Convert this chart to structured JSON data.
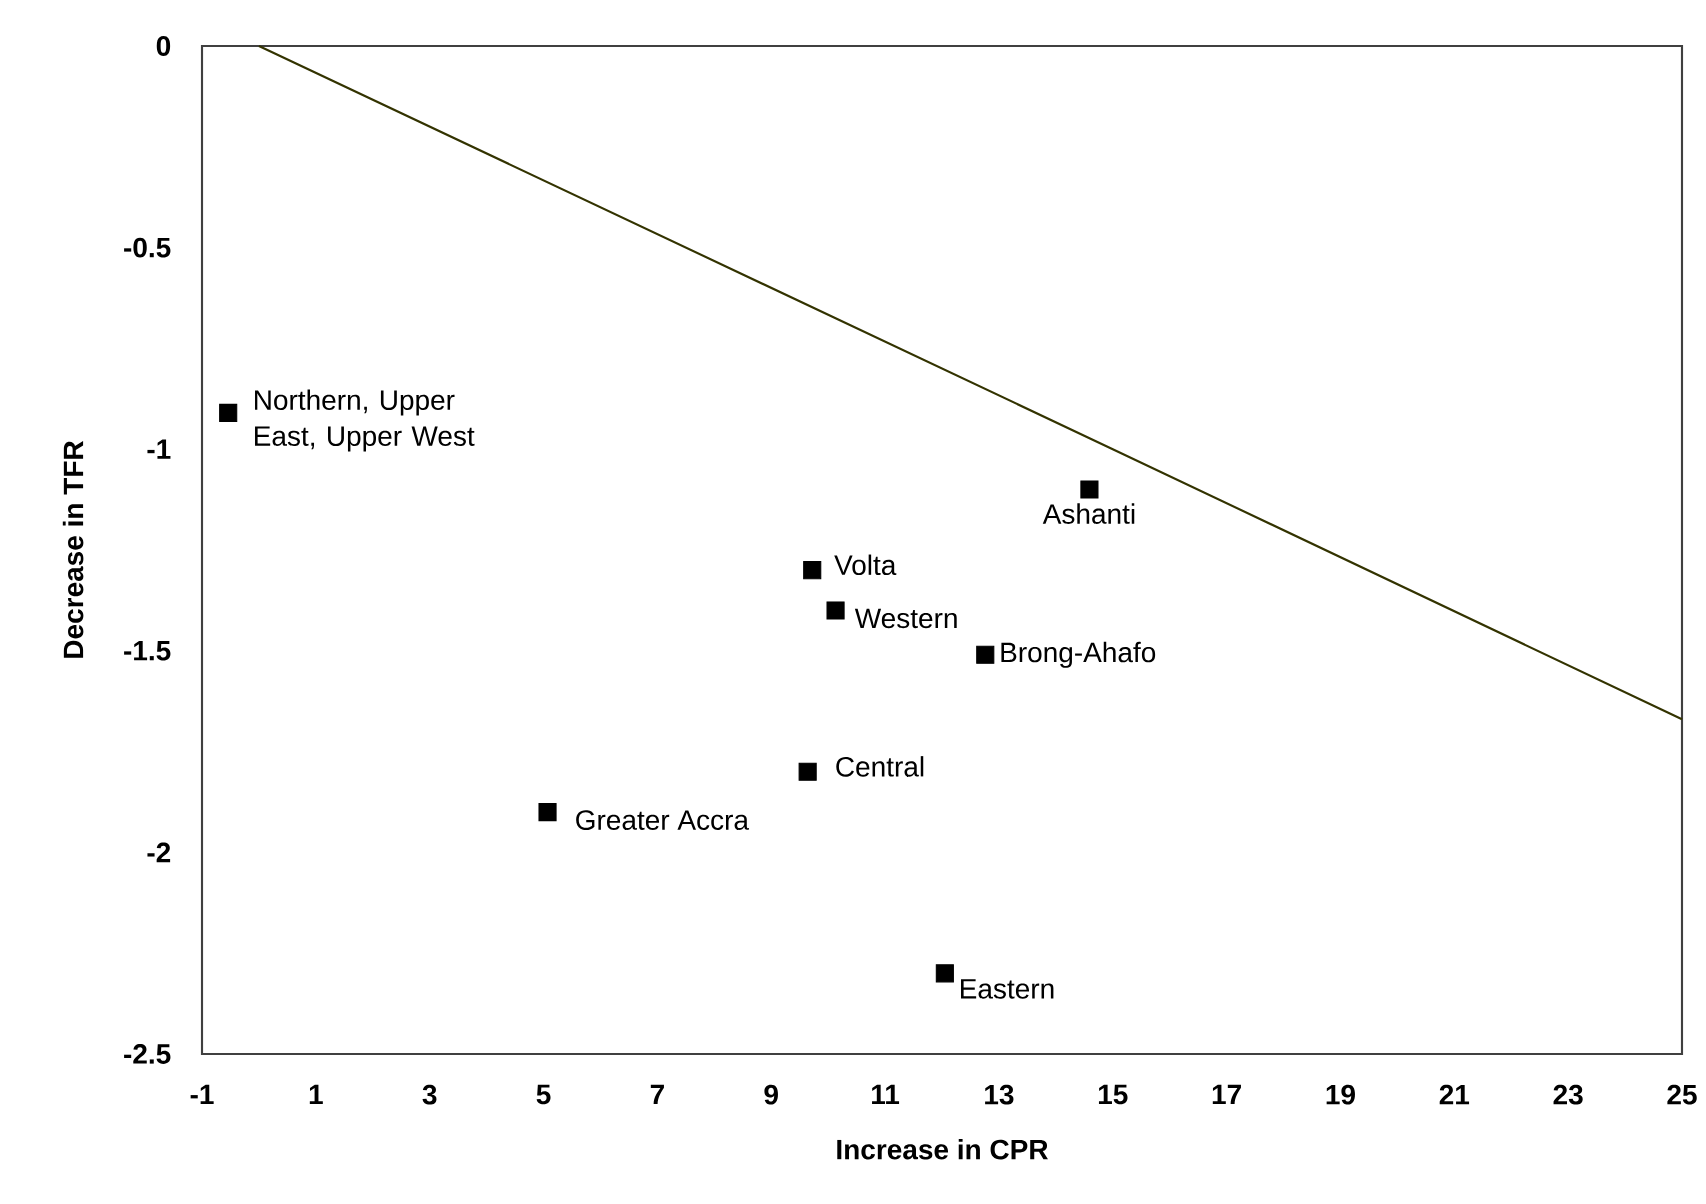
{
  "chart_data": {
    "type": "scatter",
    "xlabel": "Increase in CPR",
    "ylabel": "Decrease in TFR",
    "marker": "square",
    "grid": false,
    "xlim": [
      -1,
      25
    ],
    "xticks": [
      -1,
      1,
      3,
      5,
      7,
      9,
      11,
      13,
      15,
      17,
      19,
      21,
      23,
      25
    ],
    "ylim": [
      -2.5,
      0
    ],
    "yticks": [
      -2.5,
      -2,
      -1.5,
      -1,
      -0.5,
      0
    ],
    "series": [
      {
        "color": "#000000",
        "x": [
          -0.54,
          9.72,
          10.13,
          12.76,
          9.64,
          5.07,
          12.05,
          14.59
        ],
        "values": [
          -0.91,
          -1.3,
          -1.4,
          -1.51,
          -1.8,
          -1.9,
          -2.3,
          -1.1
        ]
      },
      {
        "type": "line",
        "color": "#333300",
        "marker": "none",
        "line_style": "solid",
        "x": [
          0,
          15,
          25
        ],
        "values": [
          0,
          -1,
          -1.67
        ]
      }
    ],
    "annotations": [
      {
        "text": "Northern, Upper East, Upper West",
        "x": -0.54,
        "y": -0.91
      },
      {
        "text": "Volta",
        "x": 9.72,
        "y": -1.3
      },
      {
        "text": "Western",
        "x": 10.13,
        "y": -1.4
      },
      {
        "text": "Brong-Ahafo",
        "x": 12.76,
        "y": -1.51
      },
      {
        "text": "Central",
        "x": 9.64,
        "y": -1.8
      },
      {
        "text": "Greater Accra",
        "x": 5.07,
        "y": -1.9
      },
      {
        "text": "Eastern",
        "x": 12.05,
        "y": -2.3
      },
      {
        "text": "Ashanti",
        "x": 14.59,
        "y": -1.1
      }
    ]
  }
}
